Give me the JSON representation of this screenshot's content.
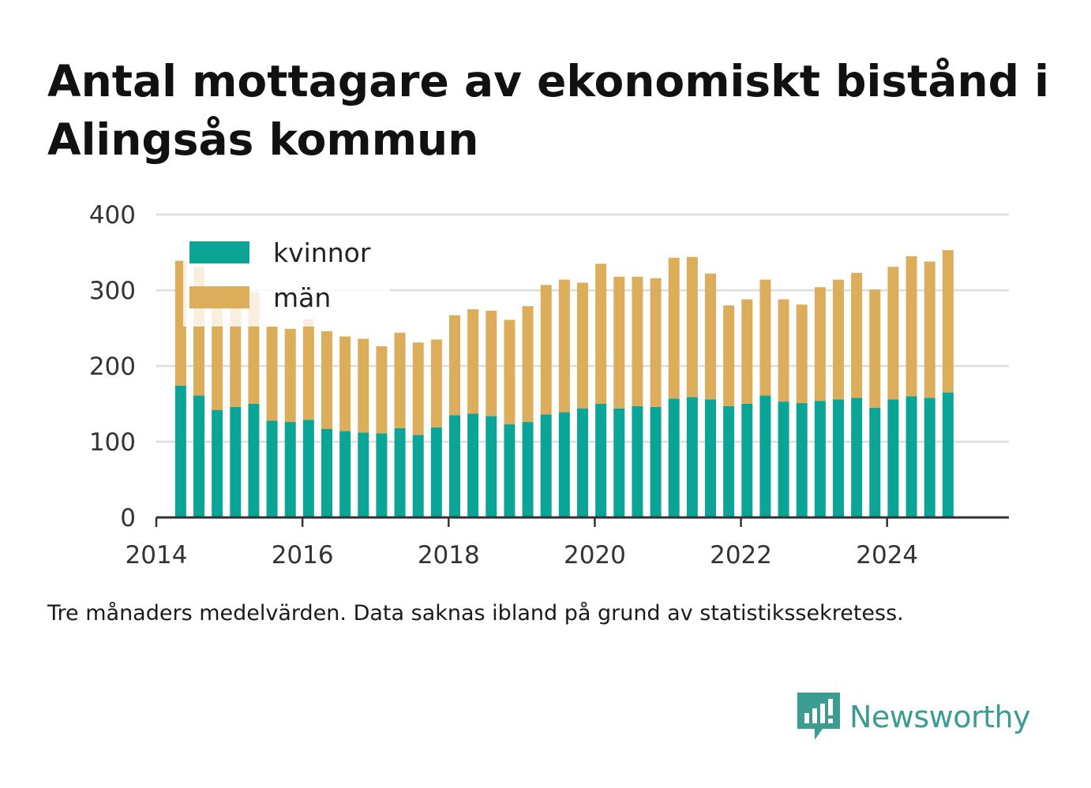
{
  "title": "Antal mottagare av ekonomiskt bistånd i Alingsås kommun",
  "caption": "Tre månaders medelvärden. Data saknas ibland på grund av statistikssekretess.",
  "brand": {
    "name": "Newsworthy",
    "color": "#3b9c91"
  },
  "colors": {
    "kvinnor": "#0aa597",
    "man": "#dcad5b",
    "grid": "#dddddd",
    "axis": "#333333"
  },
  "chart_data": {
    "type": "bar",
    "stacked": true,
    "title": "Antal mottagare av ekonomiskt bistånd i Alingsås kommun",
    "xlabel": "",
    "ylabel": "",
    "ylim": [
      0,
      400
    ],
    "yticks": [
      "0",
      "100",
      "200",
      "300",
      "400"
    ],
    "xlim": [
      "2014-01",
      "2025-09"
    ],
    "xticks": [
      "2014",
      "2016",
      "2018",
      "2020",
      "2022",
      "2024"
    ],
    "grid": true,
    "legend": "top-left",
    "x": [
      "2014-05",
      "2014-08",
      "2014-11",
      "2015-02",
      "2015-05",
      "2015-08",
      "2015-11",
      "2016-02",
      "2016-05",
      "2016-08",
      "2016-11",
      "2017-02",
      "2017-05",
      "2017-08",
      "2017-11",
      "2018-02",
      "2018-05",
      "2018-08",
      "2018-11",
      "2019-02",
      "2019-05",
      "2019-08",
      "2019-11",
      "2020-02",
      "2020-05",
      "2020-08",
      "2020-11",
      "2021-02",
      "2021-05",
      "2021-08",
      "2021-11",
      "2022-02",
      "2022-05",
      "2022-08",
      "2022-11",
      "2023-02",
      "2023-05",
      "2023-08",
      "2023-11",
      "2024-02",
      "2024-05",
      "2024-08",
      "2024-11"
    ],
    "series": [
      {
        "name": "kvinnor",
        "color": "#0aa597",
        "values": [
          174,
          161,
          142,
          146,
          150,
          128,
          126,
          129,
          117,
          114,
          112,
          111,
          118,
          109,
          119,
          135,
          137,
          134,
          123,
          126,
          136,
          139,
          144,
          150,
          144,
          147,
          146,
          157,
          159,
          156,
          147,
          150,
          161,
          153,
          151,
          154,
          156,
          158,
          145,
          156,
          160,
          158,
          165
        ]
      },
      {
        "name": "män",
        "color": "#dcad5b",
        "values": [
          165,
          170,
          154,
          151,
          148,
          124,
          123,
          133,
          129,
          125,
          124,
          115,
          126,
          122,
          116,
          132,
          138,
          139,
          138,
          153,
          171,
          175,
          166,
          185,
          174,
          171,
          170,
          186,
          185,
          166,
          133,
          138,
          153,
          135,
          130,
          150,
          158,
          165,
          156,
          175,
          185,
          180,
          188
        ]
      }
    ]
  }
}
